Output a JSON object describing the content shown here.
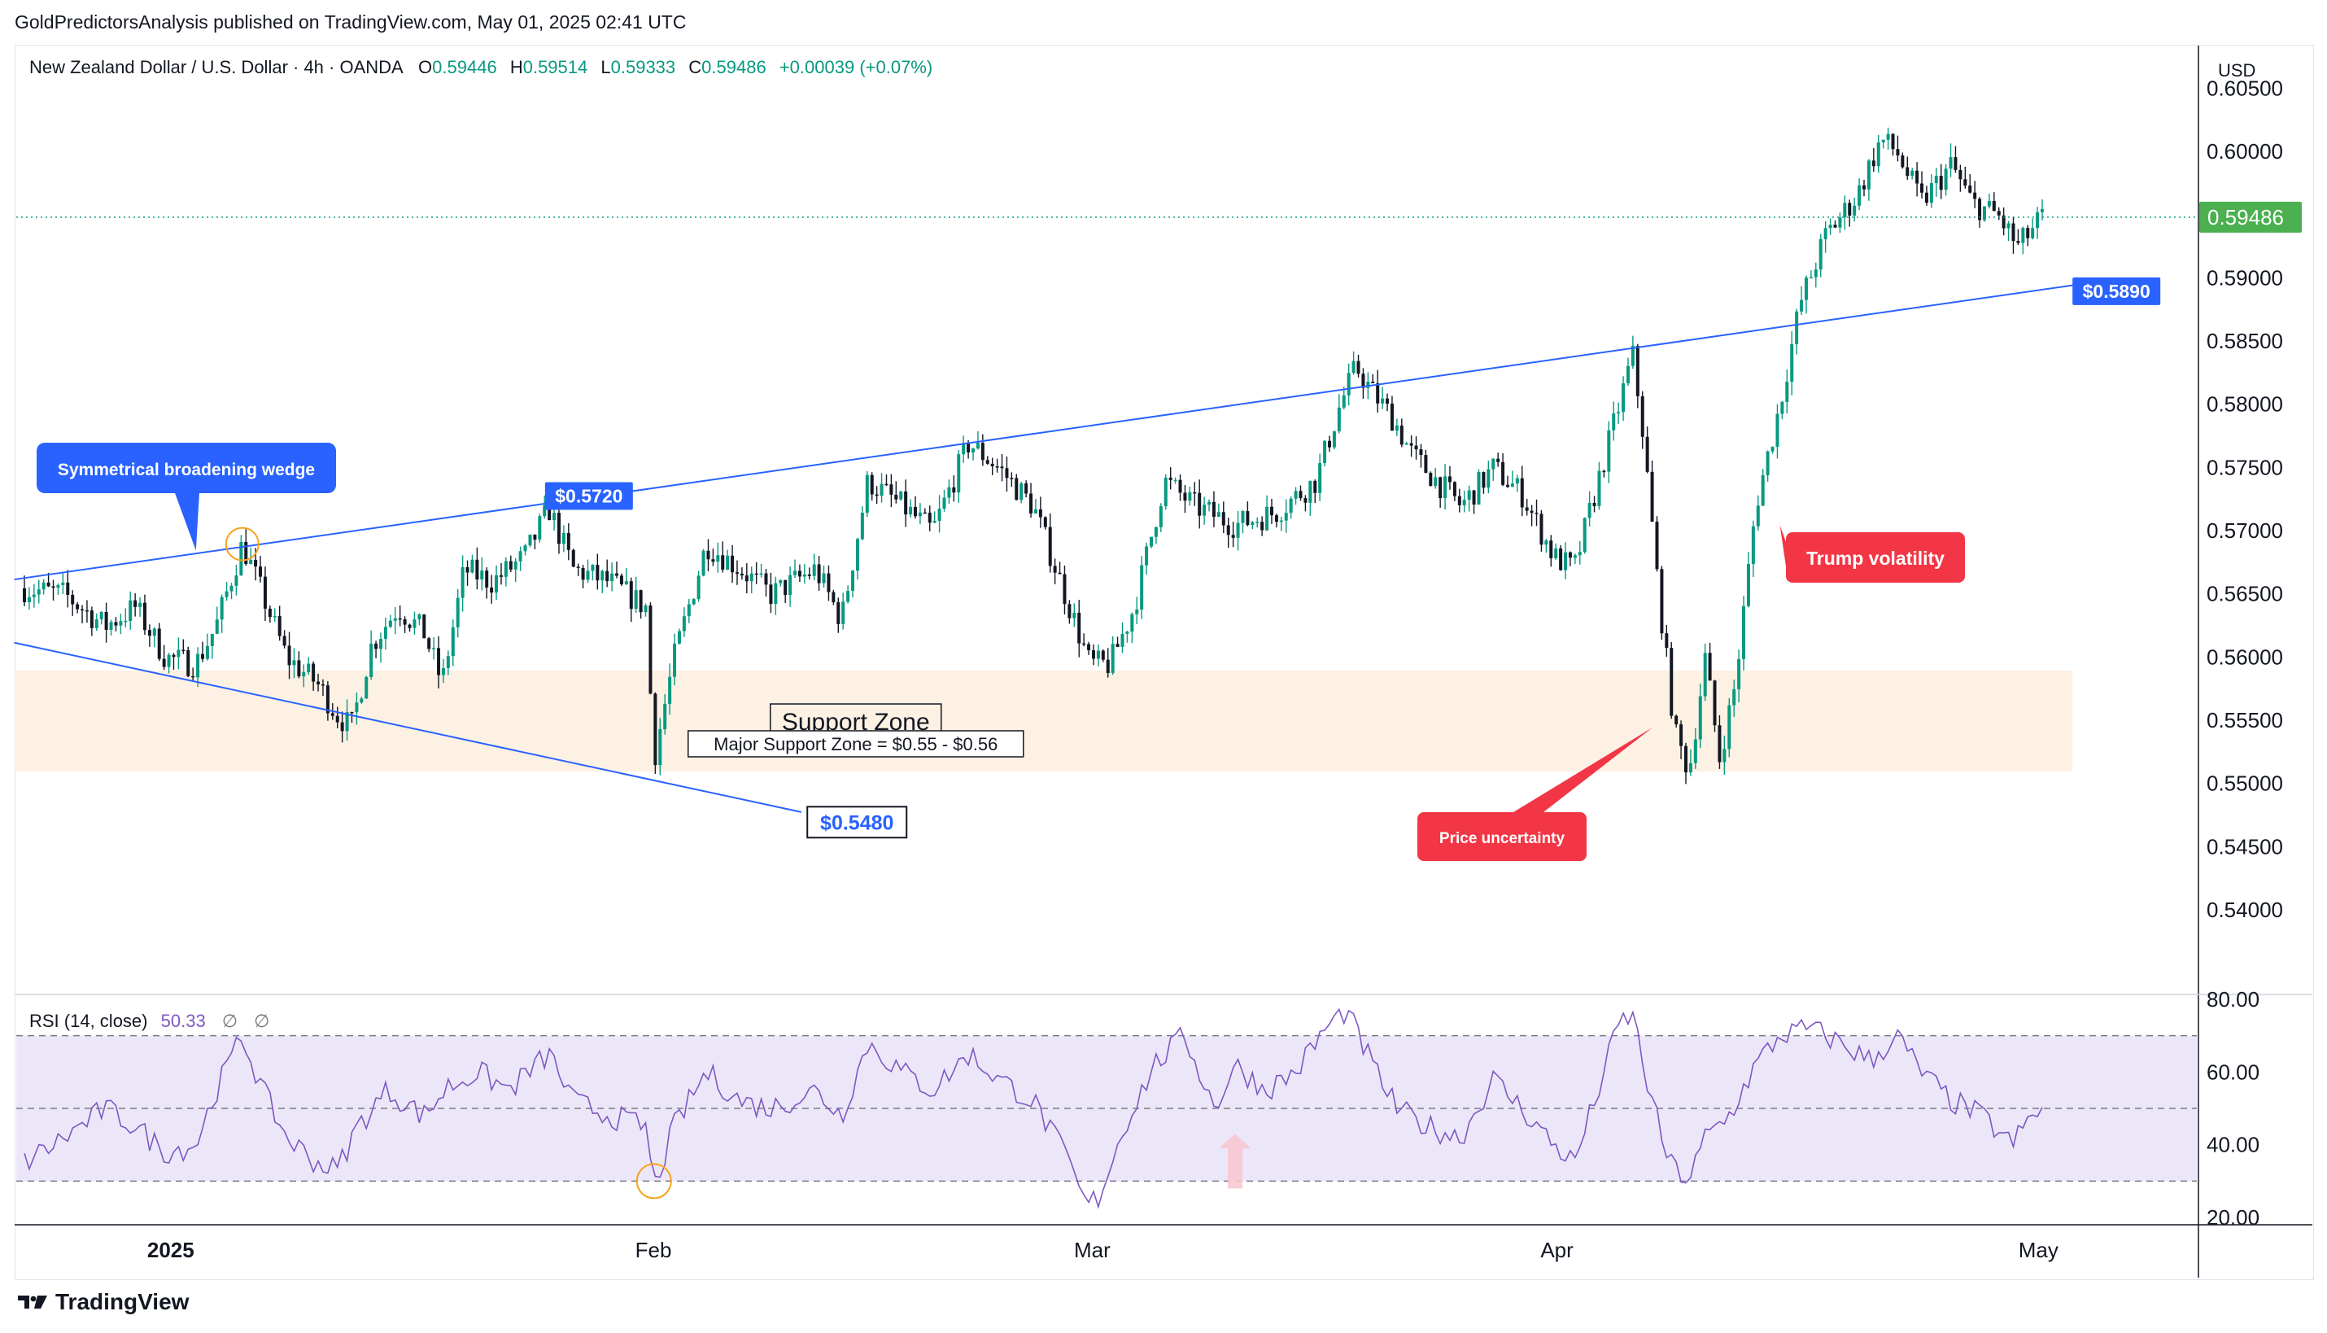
{
  "publish_line": "GoldPredictorsAnalysis published on TradingView.com, May 01, 2025 02:41 UTC",
  "legend": {
    "symbol": "New Zealand Dollar / U.S. Dollar · 4h · OANDA",
    "open_label": "O",
    "open": "0.59446",
    "high_label": "H",
    "high": "0.59514",
    "low_label": "L",
    "low": "0.59333",
    "close_label": "C",
    "close": "0.59486",
    "change": "+0.00039 (+0.07%)"
  },
  "currency_label": "USD",
  "footer_brand": "TradingView",
  "colors": {
    "up": "#089981",
    "down": "#f23645",
    "candle": "#131722",
    "trendline": "#2962ff",
    "support_fill": "#fdf1e4",
    "rsi_line": "#7e57c2",
    "rsi_band": "#ece7f8",
    "callout_blue": "#2962ff",
    "callout_red": "#f23645",
    "price_tag": "#4caf50"
  },
  "chart_data": [
    {
      "type": "candlestick",
      "title": "New Zealand Dollar / U.S. Dollar · 4h · OANDA",
      "ylabel": "USD",
      "ylim": [
        0.5335,
        0.6085
      ],
      "y_ticks": [
        "0.60500",
        "0.60000",
        "0.59000",
        "0.58500",
        "0.58000",
        "0.57500",
        "0.57000",
        "0.56500",
        "0.56000",
        "0.55500",
        "0.55000",
        "0.54500",
        "0.54000"
      ],
      "x_ticks": [
        "2025",
        "Feb",
        "Mar",
        "Apr",
        "May"
      ],
      "x_tick_positions": [
        0.0725,
        0.3117,
        0.5292,
        0.7595,
        0.9981
      ],
      "last_price": 0.59486,
      "last_price_label": "0.59486",
      "anchors": [
        [
          0.0,
          0.5655
        ],
        [
          0.02,
          0.565
        ],
        [
          0.04,
          0.5625
        ],
        [
          0.055,
          0.564
        ],
        [
          0.07,
          0.56
        ],
        [
          0.085,
          0.5595
        ],
        [
          0.095,
          0.5625
        ],
        [
          0.108,
          0.569
        ],
        [
          0.118,
          0.565
        ],
        [
          0.13,
          0.56
        ],
        [
          0.145,
          0.558
        ],
        [
          0.155,
          0.5555
        ],
        [
          0.162,
          0.5545
        ],
        [
          0.172,
          0.561
        ],
        [
          0.185,
          0.564
        ],
        [
          0.198,
          0.562
        ],
        [
          0.207,
          0.558
        ],
        [
          0.218,
          0.567
        ],
        [
          0.232,
          0.566
        ],
        [
          0.248,
          0.568
        ],
        [
          0.26,
          0.5718
        ],
        [
          0.272,
          0.567
        ],
        [
          0.29,
          0.566
        ],
        [
          0.308,
          0.564
        ],
        [
          0.312,
          0.552
        ],
        [
          0.322,
          0.56
        ],
        [
          0.338,
          0.569
        ],
        [
          0.355,
          0.567
        ],
        [
          0.37,
          0.565
        ],
        [
          0.392,
          0.567
        ],
        [
          0.405,
          0.563
        ],
        [
          0.418,
          0.574
        ],
        [
          0.435,
          0.572
        ],
        [
          0.45,
          0.57
        ],
        [
          0.468,
          0.577
        ],
        [
          0.483,
          0.575
        ],
        [
          0.5,
          0.572
        ],
        [
          0.518,
          0.564
        ],
        [
          0.528,
          0.5595
        ],
        [
          0.538,
          0.5595
        ],
        [
          0.55,
          0.564
        ],
        [
          0.565,
          0.574
        ],
        [
          0.58,
          0.572
        ],
        [
          0.6,
          0.5705
        ],
        [
          0.62,
          0.5715
        ],
        [
          0.64,
          0.574
        ],
        [
          0.652,
          0.58
        ],
        [
          0.66,
          0.583
        ],
        [
          0.668,
          0.581
        ],
        [
          0.678,
          0.579
        ],
        [
          0.688,
          0.576
        ],
        [
          0.7,
          0.574
        ],
        [
          0.712,
          0.572
        ],
        [
          0.728,
          0.575
        ],
        [
          0.742,
          0.573
        ],
        [
          0.758,
          0.568
        ],
        [
          0.768,
          0.567
        ],
        [
          0.78,
          0.574
        ],
        [
          0.792,
          0.581
        ],
        [
          0.797,
          0.584
        ],
        [
          0.802,
          0.578
        ],
        [
          0.81,
          0.565
        ],
        [
          0.818,
          0.554
        ],
        [
          0.825,
          0.551
        ],
        [
          0.833,
          0.56
        ],
        [
          0.84,
          0.552
        ],
        [
          0.848,
          0.558
        ],
        [
          0.858,
          0.572
        ],
        [
          0.87,
          0.58
        ],
        [
          0.88,
          0.588
        ],
        [
          0.893,
          0.5935
        ],
        [
          0.908,
          0.5965
        ],
        [
          0.92,
          0.601
        ],
        [
          0.928,
          0.6
        ],
        [
          0.94,
          0.596
        ],
        [
          0.955,
          0.599
        ],
        [
          0.965,
          0.596
        ],
        [
          0.978,
          0.595
        ],
        [
          0.988,
          0.5925
        ],
        [
          1.0,
          0.59486
        ]
      ],
      "trendlines": [
        {
          "name": "upper-wedge",
          "from": [
            -0.005,
            0.5662
          ],
          "to": [
            1.025,
            0.5897
          ]
        },
        {
          "name": "lower-wedge",
          "from": [
            -0.005,
            0.5612
          ],
          "to": [
            0.385,
            0.5478
          ]
        }
      ],
      "support_zone": {
        "low": 0.551,
        "high": 0.559,
        "x_end": 1.015
      },
      "annotations": [
        {
          "name": "callout-wedge",
          "text": "Symmetrical broadening wedge",
          "style": "blue-callout",
          "anchor_x": 0.085,
          "anchor_y": 0.5685
        },
        {
          "name": "label-5720",
          "text": "$0.5720",
          "style": "blue-tag",
          "at_x": 0.258,
          "at_y": 0.5728
        },
        {
          "name": "label-5890",
          "text": "$0.5890",
          "style": "blue-tag",
          "at_x": 1.015,
          "at_y": 0.589
        },
        {
          "name": "label-5480",
          "text": "$0.5480",
          "style": "outline-tag",
          "at_x": 0.388,
          "at_y": 0.547
        },
        {
          "name": "support-title",
          "text": "Support Zone",
          "style": "box-text-large",
          "at_x": 0.412,
          "at_y": 0.555
        },
        {
          "name": "support-detail",
          "text": "Major Support Zone = $0.55 - $0.56",
          "style": "box-text",
          "at_x": 0.412,
          "at_y": 0.5532
        },
        {
          "name": "callout-uncertainty",
          "text": "Price uncertainty",
          "style": "red-callout",
          "anchor_x": 0.807,
          "anchor_y": 0.5545
        },
        {
          "name": "callout-trump",
          "text": "Trump volatility",
          "style": "red-callout-left",
          "anchor_x": 0.87,
          "anchor_y": 0.5705
        }
      ],
      "highlight_circles": [
        {
          "x": 0.108,
          "y": 0.569
        }
      ]
    },
    {
      "type": "line",
      "title": "RSI (14, close)",
      "series": [
        {
          "name": "RSI (14, close)",
          "last": 50.33
        }
      ],
      "value_label": "50.33",
      "empty_labels": [
        "∅",
        "∅"
      ],
      "ylim": [
        18,
        80
      ],
      "y_ticks": [
        "80.00",
        "60.00",
        "40.00",
        "20.00"
      ],
      "levels": [
        70,
        50,
        30
      ],
      "anchors": [
        [
          0.0,
          35
        ],
        [
          0.02,
          42
        ],
        [
          0.04,
          50
        ],
        [
          0.055,
          45
        ],
        [
          0.07,
          38
        ],
        [
          0.085,
          40
        ],
        [
          0.095,
          55
        ],
        [
          0.108,
          70
        ],
        [
          0.118,
          55
        ],
        [
          0.13,
          42
        ],
        [
          0.145,
          35
        ],
        [
          0.155,
          33
        ],
        [
          0.165,
          45
        ],
        [
          0.18,
          55
        ],
        [
          0.198,
          48
        ],
        [
          0.21,
          56
        ],
        [
          0.225,
          60
        ],
        [
          0.24,
          55
        ],
        [
          0.26,
          65
        ],
        [
          0.272,
          52
        ],
        [
          0.29,
          48
        ],
        [
          0.308,
          45
        ],
        [
          0.312,
          28
        ],
        [
          0.322,
          45
        ],
        [
          0.338,
          60
        ],
        [
          0.355,
          52
        ],
        [
          0.37,
          50
        ],
        [
          0.392,
          55
        ],
        [
          0.405,
          48
        ],
        [
          0.418,
          68
        ],
        [
          0.435,
          60
        ],
        [
          0.45,
          55
        ],
        [
          0.468,
          65
        ],
        [
          0.483,
          58
        ],
        [
          0.5,
          52
        ],
        [
          0.518,
          35
        ],
        [
          0.525,
          24
        ],
        [
          0.532,
          25
        ],
        [
          0.545,
          45
        ],
        [
          0.56,
          62
        ],
        [
          0.575,
          70
        ],
        [
          0.59,
          50
        ],
        [
          0.6,
          62
        ],
        [
          0.615,
          55
        ],
        [
          0.63,
          60
        ],
        [
          0.645,
          72
        ],
        [
          0.655,
          77
        ],
        [
          0.668,
          62
        ],
        [
          0.68,
          50
        ],
        [
          0.695,
          45
        ],
        [
          0.712,
          42
        ],
        [
          0.728,
          58
        ],
        [
          0.742,
          50
        ],
        [
          0.758,
          40
        ],
        [
          0.768,
          35
        ],
        [
          0.78,
          55
        ],
        [
          0.79,
          73
        ],
        [
          0.797,
          76
        ],
        [
          0.805,
          55
        ],
        [
          0.815,
          35
        ],
        [
          0.825,
          30
        ],
        [
          0.833,
          42
        ],
        [
          0.845,
          48
        ],
        [
          0.858,
          62
        ],
        [
          0.87,
          70
        ],
        [
          0.885,
          72
        ],
        [
          0.9,
          68
        ],
        [
          0.915,
          63
        ],
        [
          0.928,
          70
        ],
        [
          0.94,
          60
        ],
        [
          0.955,
          52
        ],
        [
          0.97,
          48
        ],
        [
          0.985,
          40
        ],
        [
          0.995,
          48
        ],
        [
          1.0,
          50.33
        ]
      ],
      "arrow": {
        "x": 0.6,
        "y_from": 28,
        "y_to": 43
      },
      "highlight_circles": [
        {
          "x": 0.312,
          "y": 30
        }
      ]
    }
  ]
}
